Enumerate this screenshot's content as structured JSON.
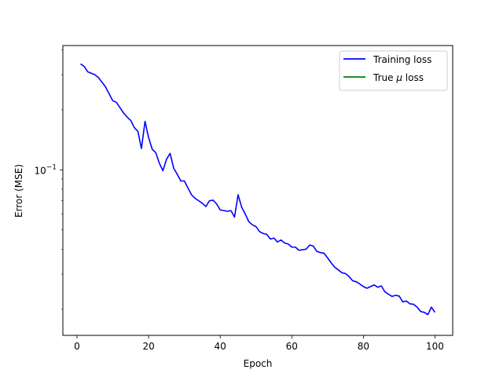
{
  "chart_data": {
    "type": "line",
    "title": "",
    "xlabel": "Epoch",
    "ylabel": "Error (MSE)",
    "yscale": "log",
    "xlim": [
      -3.95,
      104.95
    ],
    "ylim": [
      0.0148,
      0.42
    ],
    "x_ticks": [
      0,
      20,
      40,
      60,
      80,
      100
    ],
    "x_tick_labels": [
      "0",
      "20",
      "40",
      "60",
      "80",
      "100"
    ],
    "y_ticks": [
      0.1
    ],
    "y_tick_label": {
      "base": "10",
      "exp": "−1"
    },
    "legend": {
      "location": "upper-right"
    },
    "series": [
      {
        "name": "Training loss",
        "color": "#0000ff",
        "x": [
          1,
          2,
          3,
          4,
          5,
          6,
          7,
          8,
          9,
          10,
          11,
          12,
          13,
          14,
          15,
          16,
          17,
          18,
          19,
          20,
          21,
          22,
          23,
          24,
          25,
          26,
          27,
          28,
          29,
          30,
          31,
          32,
          33,
          34,
          35,
          36,
          37,
          38,
          39,
          40,
          41,
          42,
          43,
          44,
          45,
          46,
          47,
          48,
          49,
          50,
          51,
          52,
          53,
          54,
          55,
          56,
          57,
          58,
          59,
          60,
          61,
          62,
          63,
          64,
          65,
          66,
          67,
          68,
          69,
          70,
          71,
          72,
          73,
          74,
          75,
          76,
          77,
          78,
          79,
          80,
          81,
          82,
          83,
          84,
          85,
          86,
          87,
          88,
          89,
          90,
          91,
          92,
          93,
          94,
          95,
          96,
          97,
          98,
          99,
          100
        ],
        "values": [
          0.34,
          0.33,
          0.31,
          0.305,
          0.3,
          0.29,
          0.275,
          0.26,
          0.24,
          0.222,
          0.218,
          0.205,
          0.193,
          0.184,
          0.177,
          0.163,
          0.156,
          0.128,
          0.175,
          0.145,
          0.127,
          0.122,
          0.108,
          0.099,
          0.113,
          0.121,
          0.102,
          0.095,
          0.088,
          0.088,
          0.081,
          0.075,
          0.072,
          0.07,
          0.068,
          0.0655,
          0.07,
          0.0705,
          0.0675,
          0.063,
          0.0625,
          0.062,
          0.0625,
          0.058,
          0.075,
          0.065,
          0.06,
          0.055,
          0.053,
          0.052,
          0.049,
          0.048,
          0.0475,
          0.045,
          0.0455,
          0.0435,
          0.0445,
          0.043,
          0.0425,
          0.041,
          0.041,
          0.0395,
          0.0398,
          0.04,
          0.042,
          0.0415,
          0.039,
          0.0385,
          0.0382,
          0.0362,
          0.0342,
          0.0325,
          0.0315,
          0.0305,
          0.0302,
          0.0292,
          0.0278,
          0.0275,
          0.0268,
          0.026,
          0.0255,
          0.026,
          0.0265,
          0.0258,
          0.0262,
          0.0245,
          0.0238,
          0.0232,
          0.0235,
          0.0233,
          0.0218,
          0.022,
          0.0213,
          0.0212,
          0.0205,
          0.0195,
          0.0193,
          0.0188,
          0.0205,
          0.0193
        ]
      },
      {
        "name": "True μ loss",
        "color": "#008000",
        "x": [],
        "values": []
      }
    ],
    "legend_entries": [
      {
        "pre": "Training loss",
        "mu": "",
        "post": ""
      },
      {
        "pre": "True ",
        "mu": "μ",
        "post": " loss"
      }
    ]
  }
}
